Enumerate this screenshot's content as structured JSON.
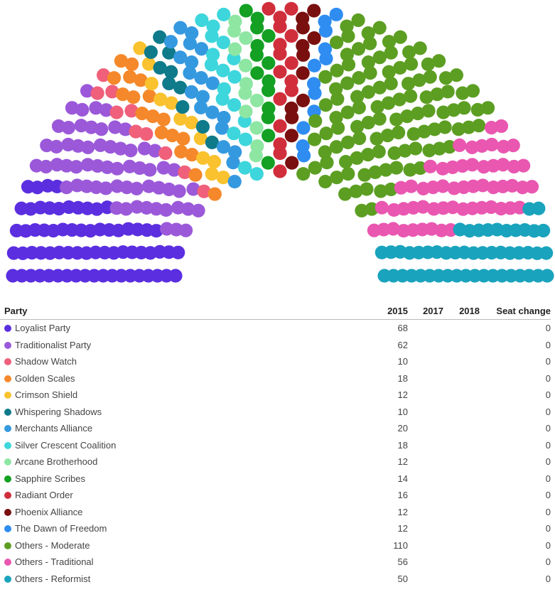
{
  "chart_data": {
    "type": "parliament",
    "total_seats": 510,
    "series": [
      {
        "name": "Loyalist Party",
        "seats": 68,
        "color": "#5b2ee0"
      },
      {
        "name": "Traditionalist Party",
        "seats": 62,
        "color": "#9b59d9"
      },
      {
        "name": "Shadow Watch",
        "seats": 10,
        "color": "#f0607a"
      },
      {
        "name": "Golden Scales",
        "seats": 18,
        "color": "#f5882a"
      },
      {
        "name": "Crimson Shield",
        "seats": 12,
        "color": "#f9c22e"
      },
      {
        "name": "Whispering Shadows",
        "seats": 10,
        "color": "#0e7a8a"
      },
      {
        "name": "Merchants Alliance",
        "seats": 20,
        "color": "#3599e0"
      },
      {
        "name": "Silver Crescent Coalition",
        "seats": 18,
        "color": "#3dd6dc"
      },
      {
        "name": "Arcane Brotherhood",
        "seats": 12,
        "color": "#8ee6a3"
      },
      {
        "name": "Sapphire Scribes",
        "seats": 14,
        "color": "#13a023"
      },
      {
        "name": "Radiant Order",
        "seats": 16,
        "color": "#d12e3c"
      },
      {
        "name": "Phoenix Alliance",
        "seats": 12,
        "color": "#7a0f0f"
      },
      {
        "name": "The Dawn of Freedom",
        "seats": 12,
        "color": "#2f8df2"
      },
      {
        "name": "Others - Moderate",
        "seats": 110,
        "color": "#5c9e22"
      },
      {
        "name": "Others - Traditional",
        "seats": 56,
        "color": "#e957b0"
      },
      {
        "name": "Others - Reformist",
        "seats": 50,
        "color": "#1aa3bd"
      }
    ]
  },
  "table": {
    "headers": {
      "party": "Party",
      "y2015": "2015",
      "y2017": "2017",
      "y2018": "2018",
      "change": "Seat change"
    },
    "rows": [
      {
        "party": "Loyalist Party",
        "y2015": "68",
        "y2017": "",
        "y2018": "",
        "change": "0"
      },
      {
        "party": "Traditionalist Party",
        "y2015": "62",
        "y2017": "",
        "y2018": "",
        "change": "0"
      },
      {
        "party": "Shadow Watch",
        "y2015": "10",
        "y2017": "",
        "y2018": "",
        "change": "0"
      },
      {
        "party": "Golden Scales",
        "y2015": "18",
        "y2017": "",
        "y2018": "",
        "change": "0"
      },
      {
        "party": "Crimson Shield",
        "y2015": "12",
        "y2017": "",
        "y2018": "",
        "change": "0"
      },
      {
        "party": "Whispering Shadows",
        "y2015": "10",
        "y2017": "",
        "y2018": "",
        "change": "0"
      },
      {
        "party": "Merchants Alliance",
        "y2015": "20",
        "y2017": "",
        "y2018": "",
        "change": "0"
      },
      {
        "party": "Silver Crescent Coalition",
        "y2015": "18",
        "y2017": "",
        "y2018": "",
        "change": "0"
      },
      {
        "party": "Arcane Brotherhood",
        "y2015": "12",
        "y2017": "",
        "y2018": "",
        "change": "0"
      },
      {
        "party": "Sapphire Scribes",
        "y2015": "14",
        "y2017": "",
        "y2018": "",
        "change": "0"
      },
      {
        "party": "Radiant Order",
        "y2015": "16",
        "y2017": "",
        "y2018": "",
        "change": "0"
      },
      {
        "party": "Phoenix Alliance",
        "y2015": "12",
        "y2017": "",
        "y2018": "",
        "change": "0"
      },
      {
        "party": "The Dawn of Freedom",
        "y2015": "12",
        "y2017": "",
        "y2018": "",
        "change": "0"
      },
      {
        "party": "Others - Moderate",
        "y2015": "110",
        "y2017": "",
        "y2018": "",
        "change": "0"
      },
      {
        "party": "Others - Traditional",
        "y2015": "56",
        "y2017": "",
        "y2018": "",
        "change": "0"
      },
      {
        "party": "Others - Reformist",
        "y2015": "50",
        "y2017": "",
        "y2018": "",
        "change": "0"
      }
    ]
  }
}
